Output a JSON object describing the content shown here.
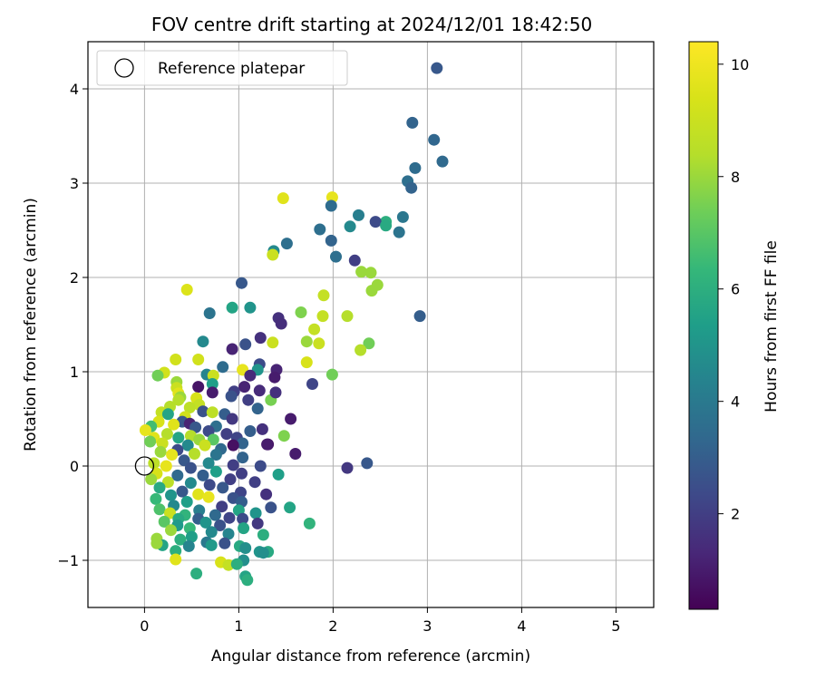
{
  "chart_data": {
    "type": "scatter",
    "title": "FOV centre drift starting at 2024/12/01 18:42:50",
    "xlabel": "Angular distance from reference (arcmin)",
    "ylabel": "Rotation from reference (arcmin)",
    "xlim": [
      -0.6,
      5.4
    ],
    "ylim": [
      -1.5,
      4.5
    ],
    "xticks": [
      0,
      1,
      2,
      3,
      4,
      5
    ],
    "yticks": [
      -1,
      0,
      1,
      2,
      3,
      4
    ],
    "xtick_labels": [
      "0",
      "1",
      "2",
      "3",
      "4",
      "5"
    ],
    "ytick_labels": [
      "−1",
      "0",
      "1",
      "2",
      "3",
      "4"
    ],
    "grid": true,
    "legend": {
      "position": "top-left",
      "entries": [
        "Reference platepar"
      ]
    },
    "reference_point": {
      "x": 0,
      "y": 0,
      "label": "Reference platepar"
    },
    "colorbar": {
      "label": "Hours from first FF file",
      "range": [
        0.3,
        10.4
      ],
      "ticks": [
        2,
        4,
        6,
        8,
        10
      ],
      "tick_labels": [
        "2",
        "4",
        "6",
        "8",
        "10"
      ],
      "colormap": "viridis"
    },
    "points": [
      [
        3.1,
        4.22,
        2.8
      ],
      [
        2.84,
        3.64,
        3.2
      ],
      [
        3.07,
        3.46,
        3.3
      ],
      [
        3.16,
        3.23,
        3.4
      ],
      [
        2.87,
        3.16,
        3.5
      ],
      [
        2.79,
        3.02,
        3.6
      ],
      [
        2.83,
        2.95,
        3.2
      ],
      [
        1.99,
        2.85,
        9.8
      ],
      [
        1.47,
        2.84,
        9.6
      ],
      [
        2.27,
        2.66,
        4.2
      ],
      [
        1.98,
        2.76,
        3.5
      ],
      [
        2.74,
        2.64,
        3.9
      ],
      [
        2.56,
        2.59,
        6.0
      ],
      [
        2.45,
        2.59,
        2.4
      ],
      [
        2.56,
        2.55,
        5.8
      ],
      [
        2.18,
        2.54,
        4.6
      ],
      [
        1.86,
        2.51,
        3.6
      ],
      [
        2.7,
        2.48,
        3.8
      ],
      [
        1.98,
        2.39,
        3.2
      ],
      [
        1.51,
        2.36,
        3.6
      ],
      [
        1.37,
        2.28,
        4.6
      ],
      [
        2.03,
        2.22,
        3.6
      ],
      [
        2.23,
        2.18,
        2.0
      ],
      [
        1.36,
        2.24,
        9.0
      ],
      [
        2.3,
        2.06,
        8.0
      ],
      [
        2.4,
        2.05,
        8.0
      ],
      [
        2.47,
        1.92,
        8.0
      ],
      [
        1.03,
        1.94,
        2.8
      ],
      [
        2.41,
        1.86,
        8.0
      ],
      [
        0.45,
        1.87,
        9.5
      ],
      [
        1.9,
        1.81,
        8.8
      ],
      [
        0.93,
        1.68,
        5.6
      ],
      [
        1.12,
        1.68,
        5.0
      ],
      [
        1.66,
        1.63,
        7.6
      ],
      [
        0.69,
        1.62,
        3.8
      ],
      [
        2.92,
        1.59,
        3.0
      ],
      [
        1.89,
        1.59,
        8.8
      ],
      [
        2.15,
        1.59,
        8.4
      ],
      [
        1.42,
        1.57,
        1.6
      ],
      [
        1.45,
        1.51,
        1.5
      ],
      [
        1.8,
        1.45,
        8.8
      ],
      [
        0.62,
        1.32,
        4.6
      ],
      [
        1.72,
        1.32,
        8.0
      ],
      [
        1.23,
        1.36,
        1.6
      ],
      [
        1.85,
        1.3,
        9.0
      ],
      [
        1.07,
        1.29,
        2.6
      ],
      [
        1.36,
        1.31,
        9.0
      ],
      [
        2.38,
        1.3,
        7.4
      ],
      [
        2.29,
        1.23,
        8.4
      ],
      [
        0.33,
        1.13,
        9.2
      ],
      [
        0.57,
        1.13,
        9.2
      ],
      [
        1.72,
        1.1,
        9.4
      ],
      [
        0.93,
        1.24,
        1.2
      ],
      [
        1.22,
        1.08,
        2.4
      ],
      [
        0.83,
        1.05,
        3.5
      ],
      [
        1.04,
        1.02,
        9.8
      ],
      [
        1.4,
        1.02,
        1.2
      ],
      [
        1.2,
        1.02,
        5.0
      ],
      [
        0.21,
        0.99,
        9.2
      ],
      [
        1.99,
        0.97,
        7.4
      ],
      [
        0.66,
        0.97,
        4.4
      ],
      [
        0.14,
        0.96,
        7.4
      ],
      [
        0.73,
        0.96,
        9.0
      ],
      [
        1.12,
        0.96,
        1.4
      ],
      [
        1.38,
        0.94,
        1.0
      ],
      [
        0.34,
        0.89,
        8.0
      ],
      [
        1.78,
        0.87,
        2.2
      ],
      [
        0.72,
        0.87,
        5.4
      ],
      [
        0.57,
        0.84,
        0.8
      ],
      [
        0.34,
        0.83,
        9.0
      ],
      [
        1.06,
        0.84,
        1.2
      ],
      [
        0.36,
        0.77,
        9.6
      ],
      [
        0.72,
        0.78,
        1.0
      ],
      [
        0.38,
        0.73,
        8.0
      ],
      [
        0.95,
        0.79,
        2.0
      ],
      [
        1.34,
        0.7,
        7.5
      ],
      [
        0.36,
        0.7,
        8.4
      ],
      [
        1.1,
        0.7,
        2.0
      ],
      [
        1.22,
        0.8,
        1.4
      ],
      [
        1.39,
        0.78,
        1.6
      ],
      [
        0.55,
        0.72,
        9.4
      ],
      [
        0.92,
        0.74,
        2.6
      ],
      [
        0.58,
        0.65,
        8.8
      ],
      [
        0.27,
        0.63,
        8.4
      ],
      [
        0.48,
        0.62,
        8.6
      ],
      [
        0.18,
        0.57,
        8.8
      ],
      [
        0.25,
        0.55,
        5.6
      ],
      [
        0.85,
        0.55,
        3.0
      ],
      [
        1.2,
        0.61,
        3.2
      ],
      [
        0.62,
        0.58,
        2.6
      ],
      [
        0.72,
        0.57,
        8.6
      ],
      [
        1.55,
        0.5,
        1.0
      ],
      [
        0.43,
        0.52,
        9.2
      ],
      [
        0.4,
        0.47,
        2.8
      ],
      [
        0.15,
        0.47,
        9.4
      ],
      [
        0.93,
        0.5,
        1.8
      ],
      [
        0.48,
        0.45,
        1.2
      ],
      [
        0.31,
        0.44,
        9.6
      ],
      [
        0.54,
        0.41,
        2.8
      ],
      [
        0.76,
        0.42,
        3.6
      ],
      [
        0.07,
        0.42,
        6.6
      ],
      [
        0.01,
        0.38,
        9.8
      ],
      [
        0.68,
        0.37,
        2.4
      ],
      [
        1.12,
        0.37,
        3.0
      ],
      [
        0.24,
        0.34,
        8.4
      ],
      [
        0.49,
        0.32,
        8.4
      ],
      [
        0.87,
        0.34,
        2.0
      ],
      [
        1.25,
        0.39,
        1.6
      ],
      [
        0.98,
        0.3,
        2.2
      ],
      [
        0.1,
        0.3,
        9.6
      ],
      [
        0.58,
        0.28,
        8.0
      ],
      [
        0.36,
        0.3,
        5.6
      ],
      [
        0.73,
        0.28,
        7.0
      ],
      [
        1.04,
        0.24,
        3.2
      ],
      [
        1.31,
        0.23,
        0.7
      ],
      [
        1.3,
        0.23,
        1.0
      ],
      [
        0.94,
        0.22,
        0.7
      ],
      [
        0.19,
        0.24,
        9.0
      ],
      [
        0.46,
        0.22,
        4.6
      ],
      [
        0.06,
        0.26,
        7.4
      ],
      [
        0.64,
        0.22,
        9.0
      ],
      [
        0.81,
        0.18,
        3.4
      ],
      [
        0.35,
        0.17,
        2.4
      ],
      [
        0.17,
        0.15,
        8.0
      ],
      [
        1.48,
        0.32,
        7.6
      ],
      [
        1.6,
        0.13,
        1.0
      ],
      [
        0.29,
        0.12,
        9.8
      ],
      [
        0.53,
        0.13,
        8.4
      ],
      [
        0.76,
        0.12,
        3.8
      ],
      [
        1.04,
        0.09,
        3.2
      ],
      [
        0.42,
        0.06,
        2.8
      ],
      [
        0.1,
        0.03,
        8.6
      ],
      [
        0.68,
        0.03,
        4.6
      ],
      [
        0.94,
        0.01,
        2.0
      ],
      [
        0.23,
        0.0,
        9.8
      ],
      [
        0.49,
        -0.02,
        2.6
      ],
      [
        1.23,
        0.0,
        2.4
      ],
      [
        2.36,
        0.03,
        2.8
      ],
      [
        2.15,
        -0.02,
        1.8
      ],
      [
        0.76,
        -0.06,
        5.4
      ],
      [
        0.13,
        -0.08,
        9.4
      ],
      [
        1.03,
        -0.08,
        2.0
      ],
      [
        0.35,
        -0.1,
        3.4
      ],
      [
        0.62,
        -0.1,
        3.0
      ],
      [
        1.42,
        -0.09,
        5.4
      ],
      [
        0.07,
        -0.14,
        8.0
      ],
      [
        0.91,
        -0.14,
        2.0
      ],
      [
        0.25,
        -0.17,
        8.6
      ],
      [
        0.49,
        -0.18,
        4.6
      ],
      [
        1.17,
        -0.17,
        2.0
      ],
      [
        0.69,
        -0.2,
        2.4
      ],
      [
        0.16,
        -0.23,
        5.8
      ],
      [
        0.83,
        -0.23,
        2.8
      ],
      [
        0.4,
        -0.27,
        2.8
      ],
      [
        1.02,
        -0.28,
        2.2
      ],
      [
        0.57,
        -0.3,
        9.6
      ],
      [
        0.28,
        -0.31,
        5.0
      ],
      [
        1.29,
        -0.3,
        1.6
      ],
      [
        0.12,
        -0.35,
        6.4
      ],
      [
        0.68,
        -0.33,
        9.8
      ],
      [
        0.94,
        -0.34,
        2.6
      ],
      [
        0.45,
        -0.38,
        5.4
      ],
      [
        1.03,
        -0.38,
        3.0
      ],
      [
        0.31,
        -0.42,
        4.6
      ],
      [
        0.82,
        -0.43,
        2.0
      ],
      [
        1.34,
        -0.44,
        2.6
      ],
      [
        1.54,
        -0.44,
        5.6
      ],
      [
        0.16,
        -0.46,
        6.8
      ],
      [
        0.58,
        -0.47,
        4.2
      ],
      [
        1.0,
        -0.47,
        5.6
      ],
      [
        0.27,
        -0.5,
        9.0
      ],
      [
        0.43,
        -0.52,
        6.2
      ],
      [
        0.75,
        -0.52,
        3.4
      ],
      [
        1.18,
        -0.5,
        5.0
      ],
      [
        0.36,
        -0.56,
        5.8
      ],
      [
        0.57,
        -0.56,
        3.0
      ],
      [
        0.9,
        -0.55,
        2.2
      ],
      [
        1.04,
        -0.56,
        2.4
      ],
      [
        0.21,
        -0.59,
        7.0
      ],
      [
        0.65,
        -0.6,
        5.0
      ],
      [
        1.2,
        -0.61,
        1.8
      ],
      [
        0.35,
        -0.63,
        5.2
      ],
      [
        0.8,
        -0.63,
        2.6
      ],
      [
        0.48,
        -0.66,
        6.4
      ],
      [
        1.05,
        -0.66,
        5.6
      ],
      [
        0.28,
        -0.68,
        8.0
      ],
      [
        0.71,
        -0.7,
        4.6
      ],
      [
        0.89,
        -0.72,
        4.4
      ],
      [
        1.26,
        -0.73,
        6.0
      ],
      [
        0.5,
        -0.75,
        5.4
      ],
      [
        0.13,
        -0.77,
        8.0
      ],
      [
        0.38,
        -0.78,
        6.0
      ],
      [
        0.66,
        -0.81,
        4.0
      ],
      [
        1.75,
        -0.61,
        6.2
      ],
      [
        0.85,
        -0.82,
        2.6
      ],
      [
        0.19,
        -0.84,
        5.6
      ],
      [
        0.47,
        -0.85,
        4.4
      ],
      [
        1.01,
        -0.85,
        5.8
      ],
      [
        0.13,
        -0.82,
        8.0
      ],
      [
        0.71,
        -0.84,
        5.2
      ],
      [
        1.07,
        -0.87,
        4.8
      ],
      [
        1.31,
        -0.91,
        5.8
      ],
      [
        0.33,
        -0.9,
        6.0
      ],
      [
        1.22,
        -0.91,
        5.0
      ],
      [
        1.26,
        -0.92,
        4.8
      ],
      [
        0.33,
        -0.99,
        9.6
      ],
      [
        0.81,
        -1.02,
        9.4
      ],
      [
        1.05,
        -1.0,
        4.8
      ],
      [
        0.89,
        -1.05,
        8.8
      ],
      [
        0.98,
        -1.04,
        6.0
      ],
      [
        0.55,
        -1.14,
        6.0
      ],
      [
        1.07,
        -1.17,
        5.6
      ],
      [
        1.09,
        -1.21,
        6.0
      ]
    ]
  }
}
